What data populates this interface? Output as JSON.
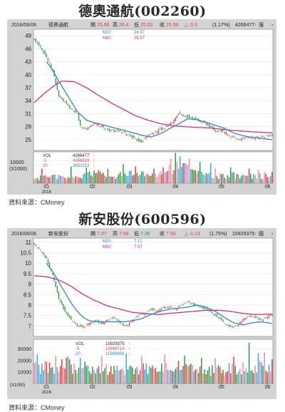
{
  "charts": [
    {
      "title": "德奧通航(002260)",
      "source": "資料來源：CMoney",
      "header": {
        "date": "2016/06/06",
        "name": "德奧通航",
        "open_label": "開",
        "open": "25.66",
        "high_label": "高",
        "high": "26.4",
        "low_label": "低",
        "low": "25.62",
        "close_label": "收",
        "close": "25.99",
        "change": "0.3",
        "pct": "(1.17%)",
        "volume": "4266477",
        "extra": "强"
      },
      "ma": {
        "m20_label": "M20",
        "m20_value": "24.97",
        "m60_label": "M60",
        "m60_value": "26.57"
      },
      "vol_legend": {
        "label": "VOL",
        "v0": "4266477",
        "k5_label": "5",
        "v5": "4358819",
        "k20_label": "20",
        "v20": "3652213"
      },
      "vol_unit_value": "10000",
      "vol_unit_label": "(X1000)",
      "colors": {
        "up": "#e2403a",
        "down": "#2c9d3c",
        "m20": "#2f86d3",
        "m60": "#d02e86",
        "vol": [
          "#e2403a",
          "#2c9d3c",
          "#3aa9d6",
          "#e58fb3"
        ]
      }
    },
    {
      "title": "新安股份(600596)",
      "source": "資料來源：CMoney",
      "header": {
        "date": "2016/06/06",
        "name": "新安股份",
        "open_label": "開",
        "open": "7.47",
        "high_label": "高",
        "high": "7.58",
        "low_label": "低",
        "low": "7.36",
        "close_label": "收",
        "close": "7.56",
        "change": "0.13",
        "pct": "(1.75%)",
        "volume": "15929375",
        "extra": "國"
      },
      "ma": {
        "m20_label": "M20",
        "m20_value": "7.12",
        "m60_label": "M60",
        "m60_value": "7.57"
      },
      "vol_legend": {
        "label": "VOL",
        "v0": "15929375",
        "k5_label": "5",
        "v5": "13949710",
        "k20_label": "20",
        "v20": "11989850"
      },
      "vol_unit_value": "",
      "vol_unit_label": "(X1000)",
      "colors": {
        "up": "#e2403a",
        "down": "#2c9d3c",
        "m20": "#2f86d3",
        "m60": "#d02e86",
        "vol": [
          "#e2403a",
          "#2c9d3c",
          "#3aa9d6",
          "#e58fb3"
        ]
      }
    }
  ],
  "chart_data": [
    {
      "type": "candlestick",
      "title": "德奧通航(002260)",
      "price_ticks": [
        49,
        46,
        43,
        40,
        37,
        34,
        31,
        28,
        25
      ],
      "price_ylim": [
        22.5,
        50.5
      ],
      "volume_ticks": [
        10000
      ],
      "volume_ylim": [
        0,
        14000
      ],
      "x_ticks": [
        {
          "label": "01",
          "sub": "2016",
          "day": 8
        },
        {
          "label": "02",
          "day": 38
        },
        {
          "label": "03",
          "day": 62
        },
        {
          "label": "04",
          "day": 92
        },
        {
          "label": "05",
          "day": 122
        },
        {
          "label": "06",
          "day": 152
        }
      ],
      "n_days": 156,
      "close_keys": [
        [
          0,
          48
        ],
        [
          4,
          46.5
        ],
        [
          8,
          44
        ],
        [
          12,
          41
        ],
        [
          16,
          35
        ],
        [
          20,
          33.5
        ],
        [
          24,
          32
        ],
        [
          28,
          31
        ],
        [
          30,
          28
        ],
        [
          34,
          27.5
        ],
        [
          38,
          28.5
        ],
        [
          42,
          28.5
        ],
        [
          46,
          27.5
        ],
        [
          50,
          27
        ],
        [
          54,
          27
        ],
        [
          58,
          26.5
        ],
        [
          62,
          26
        ],
        [
          66,
          25
        ],
        [
          70,
          24.5
        ],
        [
          74,
          26
        ],
        [
          78,
          26.5
        ],
        [
          82,
          27.5
        ],
        [
          86,
          28
        ],
        [
          90,
          29
        ],
        [
          94,
          31
        ],
        [
          98,
          30.5
        ],
        [
          102,
          30
        ],
        [
          106,
          29.5
        ],
        [
          110,
          29
        ],
        [
          114,
          28
        ],
        [
          118,
          27
        ],
        [
          122,
          27
        ],
        [
          126,
          26
        ],
        [
          130,
          25.5
        ],
        [
          134,
          25
        ],
        [
          138,
          25.5
        ],
        [
          142,
          25.5
        ],
        [
          146,
          25.5
        ],
        [
          150,
          25.8
        ],
        [
          155,
          25.99
        ]
      ],
      "m20_keys": [
        [
          8,
          43
        ],
        [
          12,
          41
        ],
        [
          16,
          38.5
        ],
        [
          22,
          35
        ],
        [
          28,
          31.5
        ],
        [
          34,
          29.5
        ],
        [
          40,
          28.8
        ],
        [
          46,
          28.3
        ],
        [
          52,
          27.7
        ],
        [
          58,
          27.2
        ],
        [
          64,
          26.6
        ],
        [
          70,
          26
        ],
        [
          76,
          25.6
        ],
        [
          82,
          26.3
        ],
        [
          88,
          27.5
        ],
        [
          94,
          28.6
        ],
        [
          100,
          29.8
        ],
        [
          106,
          29.6
        ],
        [
          112,
          29
        ],
        [
          118,
          28.3
        ],
        [
          124,
          27.6
        ],
        [
          130,
          26.5
        ],
        [
          136,
          25.9
        ],
        [
          142,
          25.5
        ],
        [
          148,
          25.3
        ],
        [
          155,
          24.97
        ]
      ],
      "m60_keys": [
        [
          0,
          33.5
        ],
        [
          6,
          35.5
        ],
        [
          12,
          37.2
        ],
        [
          18,
          38.5
        ],
        [
          26,
          38.4
        ],
        [
          34,
          37
        ],
        [
          42,
          35.2
        ],
        [
          50,
          33.5
        ],
        [
          58,
          32
        ],
        [
          66,
          30.5
        ],
        [
          74,
          29.5
        ],
        [
          82,
          28.7
        ],
        [
          90,
          28.2
        ],
        [
          98,
          28
        ],
        [
          106,
          27.8
        ],
        [
          114,
          27.7
        ],
        [
          122,
          27.4
        ],
        [
          130,
          27.1
        ],
        [
          138,
          26.9
        ],
        [
          146,
          26.7
        ],
        [
          155,
          26.57
        ]
      ],
      "vol_keys": [
        [
          0,
          2000
        ],
        [
          10,
          3000
        ],
        [
          20,
          2500
        ],
        [
          30,
          3000
        ],
        [
          38,
          4500
        ],
        [
          44,
          4000
        ],
        [
          52,
          3000
        ],
        [
          60,
          4000
        ],
        [
          68,
          4500
        ],
        [
          76,
          3000
        ],
        [
          86,
          4500
        ],
        [
          92,
          8000
        ],
        [
          98,
          7000
        ],
        [
          104,
          5500
        ],
        [
          112,
          3500
        ],
        [
          122,
          3000
        ],
        [
          132,
          3500
        ],
        [
          142,
          3000
        ],
        [
          150,
          3500
        ],
        [
          155,
          3500
        ]
      ],
      "vol_spikes": [
        [
          5,
          6500
        ],
        [
          24,
          7500
        ],
        [
          34,
          7000
        ],
        [
          48,
          6500
        ],
        [
          58,
          8500
        ],
        [
          66,
          7500
        ],
        [
          78,
          6500
        ],
        [
          84,
          7000
        ],
        [
          89,
          11000
        ],
        [
          92,
          13500
        ],
        [
          95,
          12000
        ],
        [
          101,
          11000
        ],
        [
          108,
          9500
        ],
        [
          115,
          9000
        ],
        [
          118,
          6500
        ],
        [
          128,
          7000
        ],
        [
          140,
          6500
        ],
        [
          146,
          6000
        ]
      ]
    },
    {
      "type": "candlestick",
      "title": "新安股份(600596)",
      "price_ticks": [
        11,
        10.5,
        10,
        9.5,
        9,
        8.5,
        8,
        7.5,
        7
      ],
      "price_ylim": [
        6.5,
        11.2
      ],
      "volume_ticks": [
        30000,
        20000,
        10000
      ],
      "volume_ylim": [
        0,
        38000
      ],
      "x_ticks": [
        {
          "label": "01",
          "sub": "2016",
          "day": 8
        },
        {
          "label": "02",
          "day": 38
        },
        {
          "label": "03",
          "day": 62
        },
        {
          "label": "04",
          "day": 92
        },
        {
          "label": "05",
          "day": 122
        },
        {
          "label": "06",
          "day": 152
        }
      ],
      "n_days": 156,
      "close_keys": [
        [
          0,
          10.9
        ],
        [
          4,
          10.6
        ],
        [
          8,
          10.2
        ],
        [
          12,
          9.4
        ],
        [
          16,
          8.3
        ],
        [
          20,
          7.7
        ],
        [
          24,
          7.3
        ],
        [
          28,
          7.0
        ],
        [
          32,
          6.95
        ],
        [
          36,
          7.15
        ],
        [
          40,
          7.25
        ],
        [
          44,
          7.1
        ],
        [
          48,
          7.3
        ],
        [
          52,
          7.4
        ],
        [
          56,
          7.1
        ],
        [
          60,
          7.0
        ],
        [
          64,
          7.3
        ],
        [
          68,
          7.5
        ],
        [
          72,
          7.6
        ],
        [
          76,
          7.8
        ],
        [
          80,
          7.7
        ],
        [
          84,
          7.9
        ],
        [
          88,
          7.9
        ],
        [
          92,
          7.8
        ],
        [
          96,
          8.0
        ],
        [
          100,
          8.2
        ],
        [
          104,
          8.0
        ],
        [
          108,
          7.9
        ],
        [
          112,
          7.8
        ],
        [
          116,
          7.6
        ],
        [
          120,
          7.4
        ],
        [
          124,
          7.1
        ],
        [
          128,
          6.95
        ],
        [
          132,
          7.0
        ],
        [
          136,
          7.3
        ],
        [
          140,
          7.5
        ],
        [
          144,
          7.4
        ],
        [
          148,
          7.3
        ],
        [
          152,
          7.45
        ],
        [
          155,
          7.56
        ]
      ],
      "m20_keys": [
        [
          8,
          10.0
        ],
        [
          12,
          9.6
        ],
        [
          16,
          9.1
        ],
        [
          20,
          8.6
        ],
        [
          24,
          8.1
        ],
        [
          28,
          7.7
        ],
        [
          32,
          7.4
        ],
        [
          36,
          7.25
        ],
        [
          40,
          7.2
        ],
        [
          46,
          7.2
        ],
        [
          52,
          7.2
        ],
        [
          58,
          7.2
        ],
        [
          64,
          7.25
        ],
        [
          70,
          7.35
        ],
        [
          76,
          7.55
        ],
        [
          82,
          7.7
        ],
        [
          88,
          7.8
        ],
        [
          94,
          7.85
        ],
        [
          100,
          7.9
        ],
        [
          106,
          8.0
        ],
        [
          112,
          7.9
        ],
        [
          118,
          7.7
        ],
        [
          124,
          7.4
        ],
        [
          130,
          7.15
        ],
        [
          136,
          7.05
        ],
        [
          142,
          7.15
        ],
        [
          148,
          7.2
        ],
        [
          155,
          7.12
        ]
      ],
      "m60_keys": [
        [
          0,
          9.4
        ],
        [
          8,
          9.35
        ],
        [
          16,
          9.2
        ],
        [
          24,
          8.9
        ],
        [
          32,
          8.5
        ],
        [
          40,
          8.2
        ],
        [
          48,
          7.95
        ],
        [
          56,
          7.8
        ],
        [
          64,
          7.65
        ],
        [
          72,
          7.6
        ],
        [
          80,
          7.55
        ],
        [
          88,
          7.6
        ],
        [
          96,
          7.65
        ],
        [
          104,
          7.7
        ],
        [
          112,
          7.75
        ],
        [
          120,
          7.75
        ],
        [
          128,
          7.7
        ],
        [
          136,
          7.6
        ],
        [
          144,
          7.55
        ],
        [
          155,
          7.57
        ]
      ],
      "vol_keys": [
        [
          0,
          13000
        ],
        [
          10,
          14000
        ],
        [
          20,
          16000
        ],
        [
          30,
          12000
        ],
        [
          38,
          15000
        ],
        [
          46,
          13000
        ],
        [
          54,
          11000
        ],
        [
          62,
          12000
        ],
        [
          70,
          13000
        ],
        [
          78,
          12000
        ],
        [
          86,
          14000
        ],
        [
          94,
          15000
        ],
        [
          102,
          12000
        ],
        [
          110,
          10000
        ],
        [
          118,
          11000
        ],
        [
          126,
          12000
        ],
        [
          134,
          13000
        ],
        [
          142,
          14000
        ],
        [
          150,
          16000
        ],
        [
          155,
          16000
        ]
      ],
      "vol_spikes": [
        [
          2,
          25000
        ],
        [
          14,
          24000
        ],
        [
          22,
          23000
        ],
        [
          30,
          22000
        ],
        [
          44,
          24000
        ],
        [
          60,
          26000
        ],
        [
          70,
          24000
        ],
        [
          85,
          25000
        ],
        [
          98,
          24000
        ],
        [
          109,
          22000
        ],
        [
          118,
          22000
        ],
        [
          130,
          23000
        ],
        [
          140,
          35000
        ],
        [
          146,
          26000
        ],
        [
          150,
          27000
        ]
      ]
    }
  ]
}
